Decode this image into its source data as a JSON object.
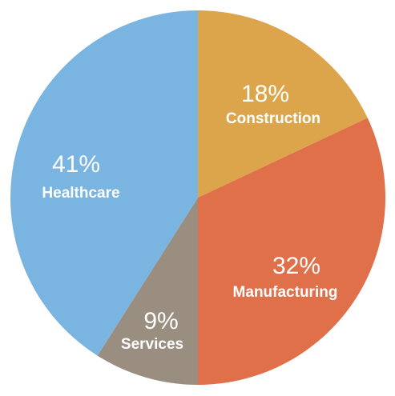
{
  "chart_data": {
    "type": "pie",
    "start_angle_deg": 0,
    "direction": "clockwise",
    "slices": [
      {
        "label": "Construction",
        "value": 18,
        "value_label": "18%",
        "color": "#DDA54B"
      },
      {
        "label": "Manufacturing",
        "value": 32,
        "value_label": "32%",
        "color": "#E0704A"
      },
      {
        "label": "Services",
        "value": 9,
        "value_label": "9%",
        "color": "#9A8E81"
      },
      {
        "label": "Healthcare",
        "value": 41,
        "value_label": "41%",
        "color": "#7AB4E0"
      }
    ]
  }
}
